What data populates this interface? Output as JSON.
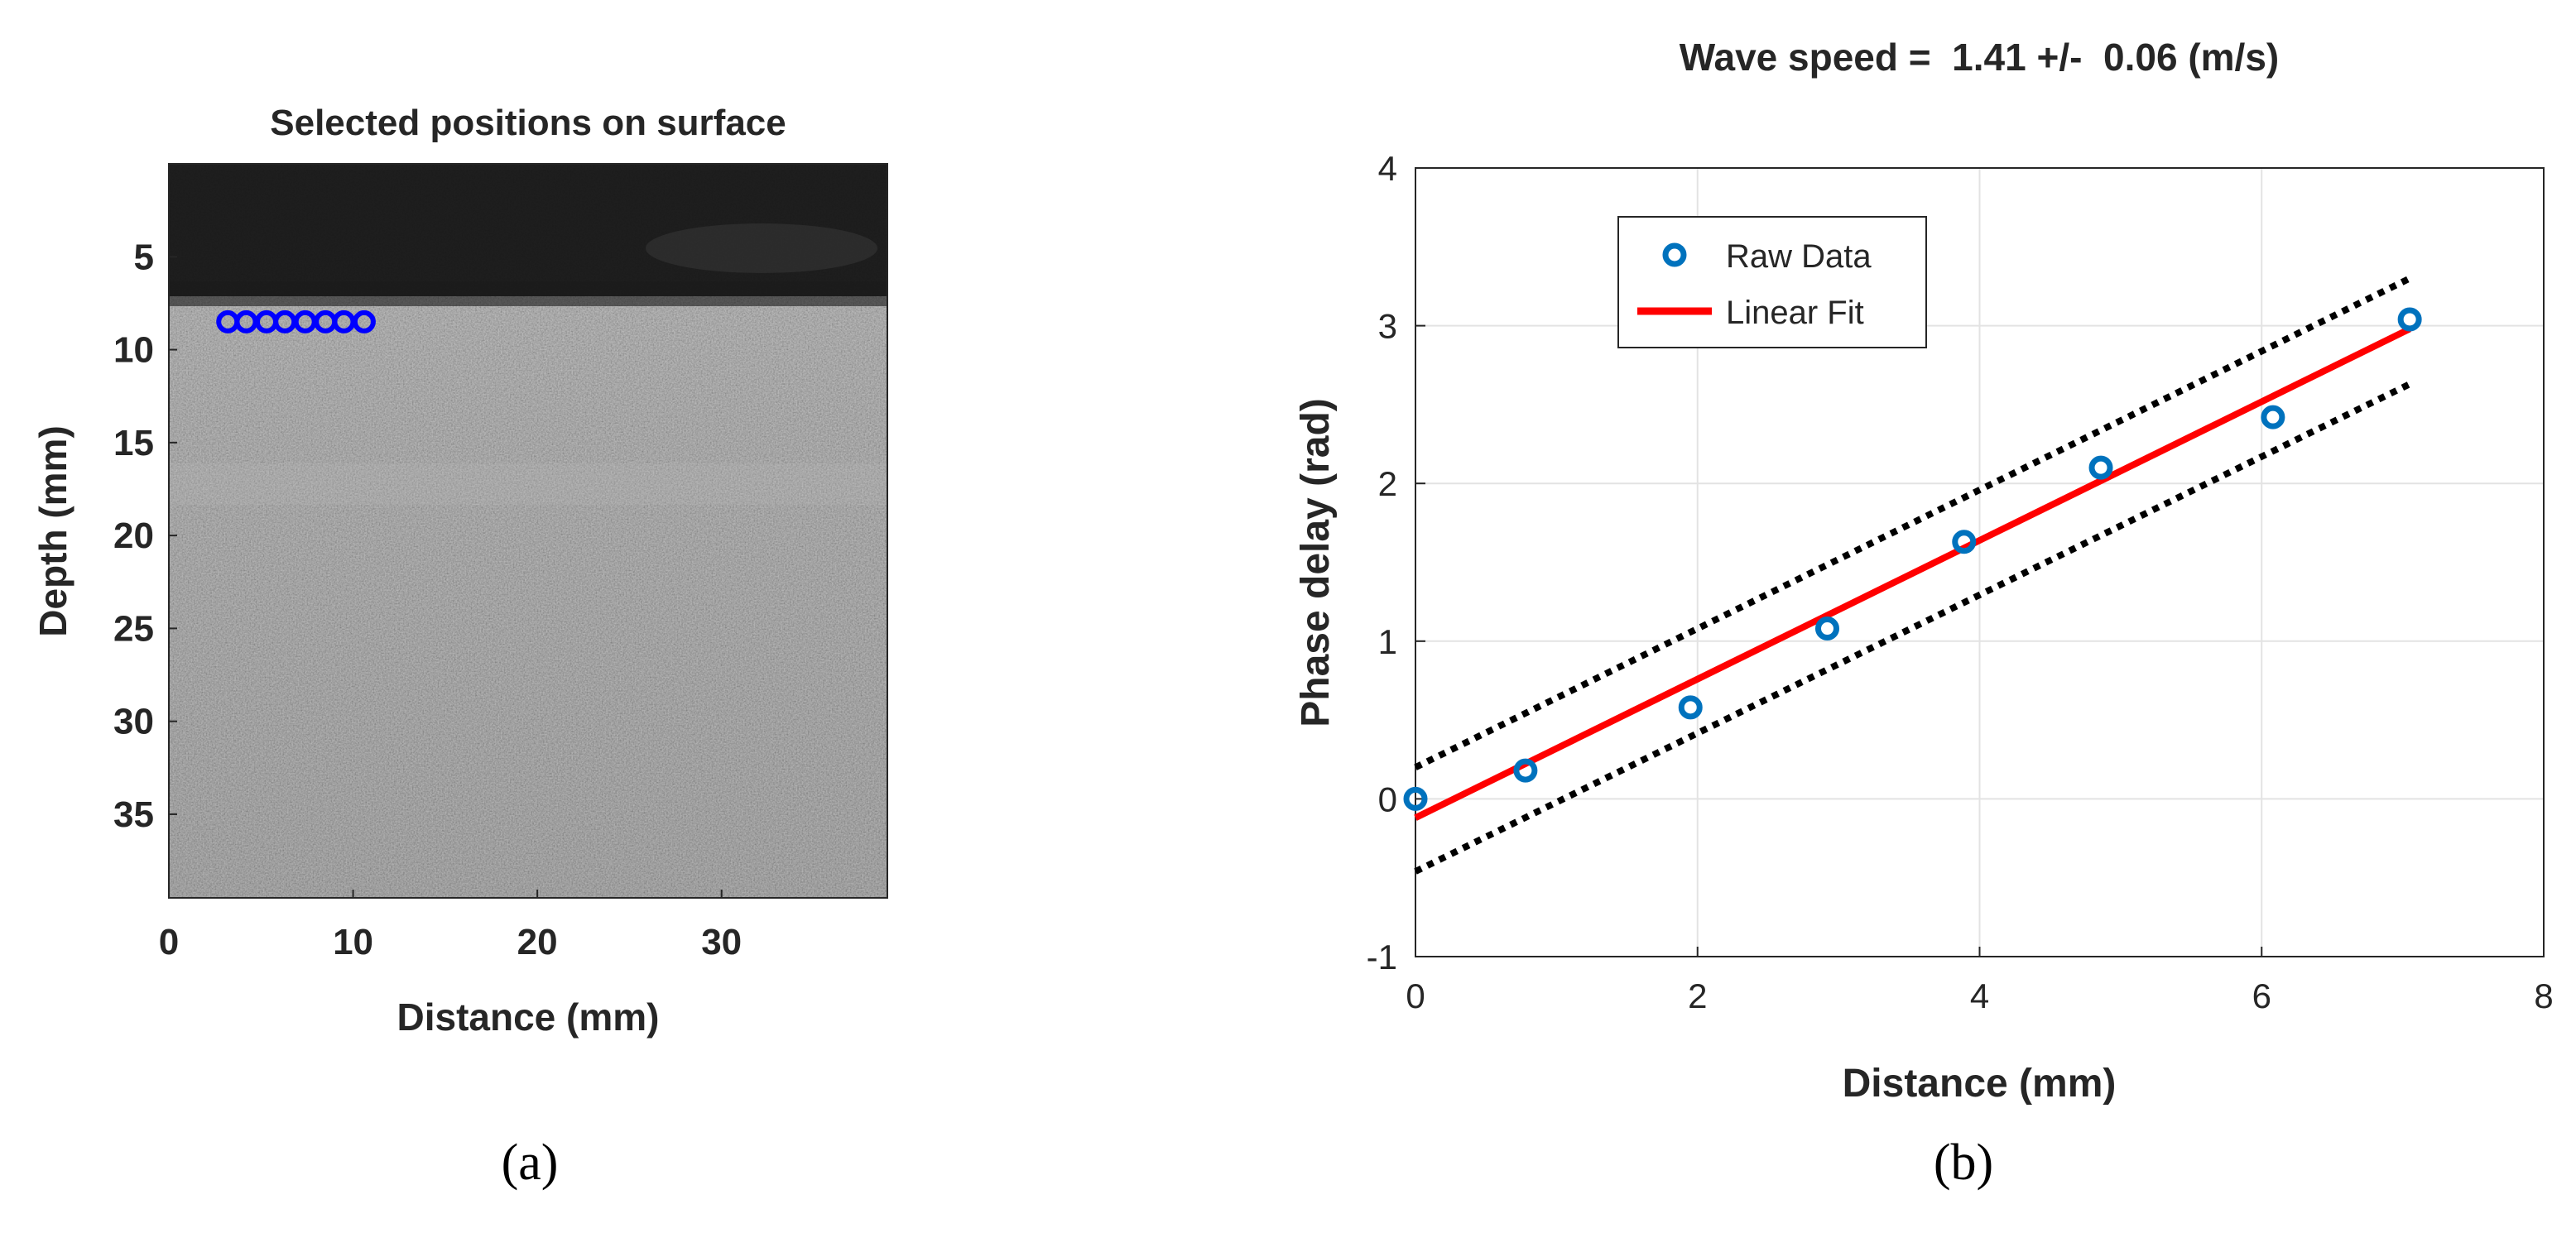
{
  "captions": {
    "a": "(a)",
    "b": "(b)"
  },
  "chart_data": [
    {
      "type": "image",
      "title": "Selected positions on surface",
      "xlabel": "Distance (mm)",
      "ylabel": "Depth (mm)",
      "xlim": [
        0,
        39
      ],
      "ylim": [
        39.5,
        0
      ],
      "xticks": [
        0,
        10,
        20,
        30
      ],
      "xtick_labels": [
        "0",
        "10",
        "20",
        "30"
      ],
      "yticks": [
        5,
        10,
        15,
        20,
        25,
        30,
        35
      ],
      "ytick_labels": [
        "5",
        "10",
        "15",
        "20",
        "25",
        "30",
        "35"
      ],
      "markers": {
        "color": "#0000ff",
        "depth": 8.5,
        "x": [
          3.2,
          4.2,
          5.3,
          6.3,
          7.4,
          8.5,
          9.5,
          10.6
        ]
      }
    },
    {
      "type": "scatter",
      "title": "Wave speed =  1.41 +/-  0.06 (m/s)",
      "xlabel": "Distance (mm)",
      "ylabel": "Phase delay (rad)",
      "xlim": [
        0,
        8
      ],
      "ylim": [
        -1,
        4
      ],
      "grid": true,
      "legend_position": "top-left",
      "xticks": [
        0,
        2,
        4,
        6,
        8
      ],
      "xtick_labels": [
        "0",
        "2",
        "4",
        "6",
        "8"
      ],
      "yticks": [
        -1,
        0,
        1,
        2,
        3,
        4
      ],
      "ytick_labels": [
        "-1",
        "0",
        "1",
        "2",
        "3",
        "4"
      ],
      "series": [
        {
          "name": "Raw Data",
          "kind": "markers",
          "color": "#0072bd",
          "x": [
            0,
            0.78,
            1.95,
            2.92,
            3.89,
            4.86,
            6.08,
            7.05
          ],
          "y": [
            0.0,
            0.18,
            0.58,
            1.08,
            1.63,
            2.1,
            2.42,
            3.04
          ]
        },
        {
          "name": "Linear Fit",
          "kind": "line",
          "color": "#ff0000",
          "x": [
            0,
            7.05
          ],
          "y": [
            -0.12,
            2.98
          ]
        },
        {
          "kind": "dotted-line",
          "color": "#000000",
          "x": [
            0,
            7.05
          ],
          "y": [
            0.2,
            3.3
          ]
        },
        {
          "kind": "dotted-line",
          "color": "#000000",
          "x": [
            0,
            7.05
          ],
          "y": [
            -0.46,
            2.63
          ]
        }
      ]
    }
  ]
}
